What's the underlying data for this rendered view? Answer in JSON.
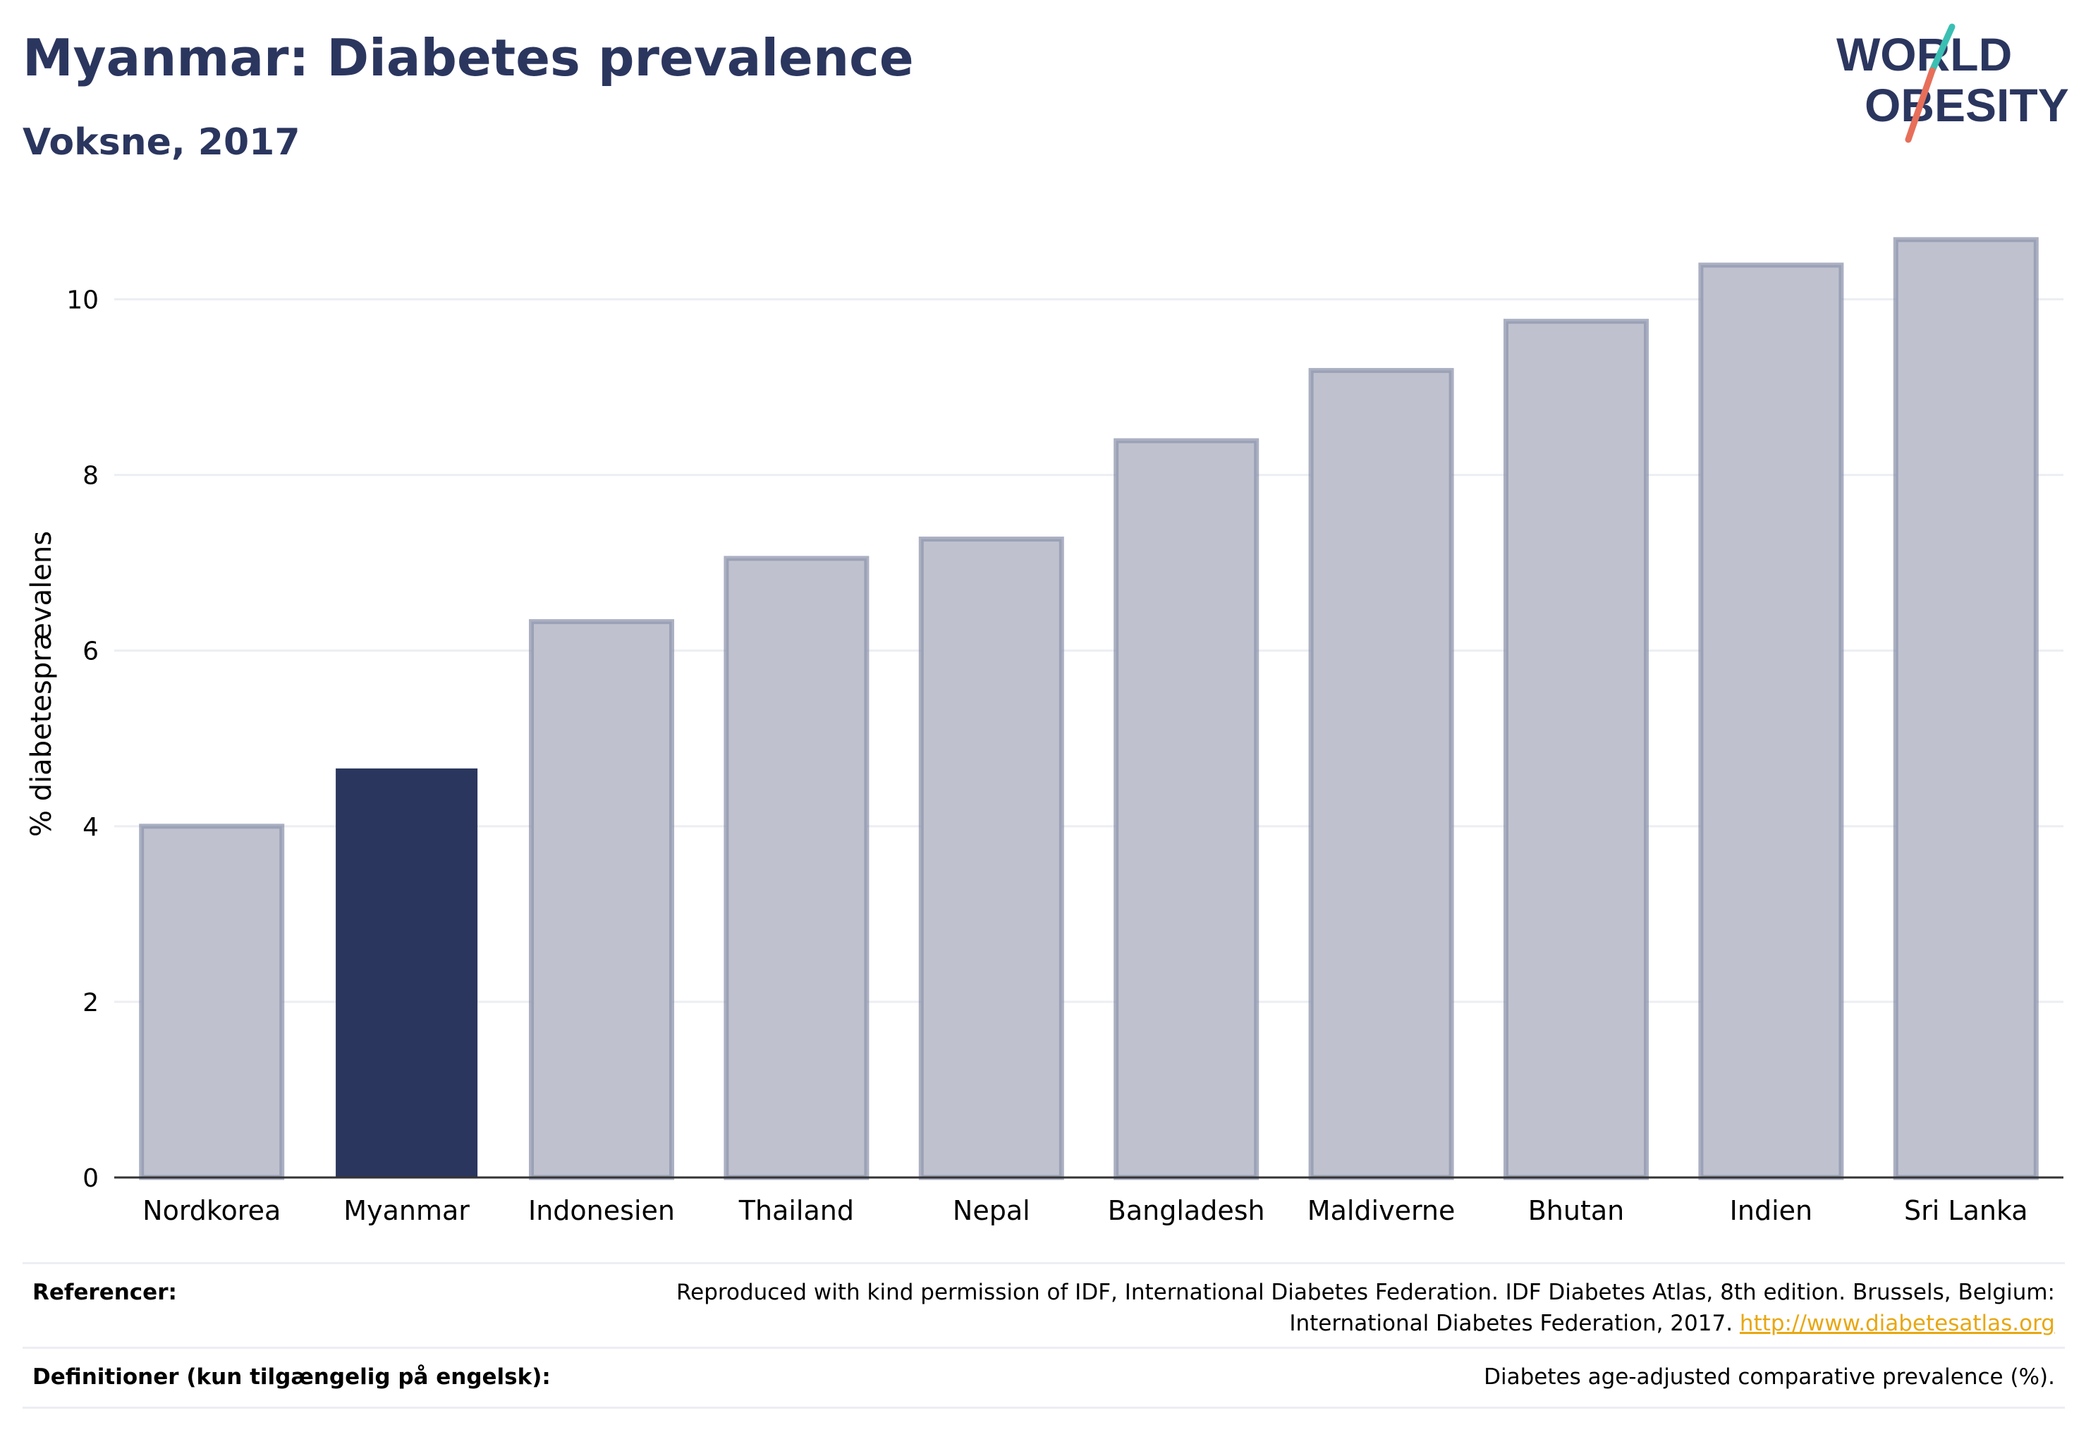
{
  "header": {
    "title": "Myanmar: Diabetes prevalence",
    "subtitle": "Voksne, 2017"
  },
  "logo": {
    "line1": "WORLD",
    "line2": "OBESITY",
    "accent_teal": "#3bbfb3",
    "accent_coral": "#e76f5a",
    "text_color": "#2b365f"
  },
  "chart_data": {
    "type": "bar",
    "categories": [
      "Nordkorea",
      "Myanmar",
      "Indonesien",
      "Thailand",
      "Nepal",
      "Bangladesh",
      "Maldiverne",
      "Bhutan",
      "Indien",
      "Sri Lanka"
    ],
    "values": [
      4.0,
      4.65,
      6.33,
      7.05,
      7.27,
      8.39,
      9.19,
      9.75,
      10.39,
      10.68
    ],
    "highlight_index": 1,
    "highlight_color": "#2b365f",
    "bar_color": "#bfc2ce",
    "bar_edge_color": "#8f96ad",
    "xlabel": "",
    "ylabel": "% diabetesprævalens",
    "ylim": [
      0,
      11
    ],
    "yticks": [
      0,
      2,
      4,
      6,
      8,
      10
    ],
    "grid": true
  },
  "footer": {
    "references_label": "Referencer:",
    "references_text": "Reproduced with kind permission of IDF, International Diabetes Federation. IDF Diabetes Atlas, 8th edition. Brussels, Belgium:",
    "references_text2": "International Diabetes Federation, 2017.",
    "references_link": "http://www.diabetesatlas.org",
    "definitions_label": "Definitioner (kun tilgængelig på engelsk):",
    "definitions_text": "Diabetes age-adjusted comparative prevalence (%)."
  }
}
